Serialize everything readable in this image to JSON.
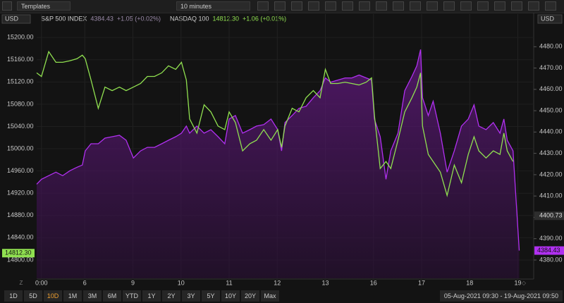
{
  "toolbar": {
    "templates": "Templates",
    "interval": "10 minutes"
  },
  "chart_data": {
    "type": "line",
    "left_currency": "USD",
    "right_currency": "USD",
    "x": [
      0,
      0.1,
      0.25,
      0.4,
      0.54,
      0.69,
      0.84,
      0.95,
      1.01,
      1.13,
      1.28,
      1.42,
      1.57,
      1.72,
      1.86,
      2.01,
      2.16,
      2.3,
      2.45,
      2.6,
      2.74,
      2.89,
      3.01,
      3.11,
      3.18,
      3.33,
      3.48,
      3.62,
      3.77,
      3.91,
      4.0,
      4.13,
      4.28,
      4.43,
      4.57,
      4.72,
      4.87,
      5.01,
      5.09,
      5.16,
      5.31,
      5.45,
      5.6,
      5.75,
      5.89,
      6.0,
      6.11,
      6.26,
      6.41,
      6.55,
      6.7,
      6.85,
      6.96,
      7.02,
      7.14,
      7.26,
      7.36,
      7.51,
      7.65,
      7.8,
      7.9,
      7.98,
      8.02,
      8.14,
      8.24,
      8.39,
      8.53,
      8.68,
      8.83,
      8.97,
      9.09,
      9.19,
      9.34,
      9.49,
      9.63,
      9.71,
      9.78,
      9.9,
      9.97,
      10.03
    ],
    "xlim": [
      0,
      10.33
    ],
    "xticks": [
      {
        "value": 0.1,
        "label": "0:00"
      },
      {
        "value": 1,
        "label": "6"
      },
      {
        "value": 2,
        "label": "9"
      },
      {
        "value": 3,
        "label": "10"
      },
      {
        "value": 4,
        "label": "11"
      },
      {
        "value": 5,
        "label": "12"
      },
      {
        "value": 6,
        "label": "13"
      },
      {
        "value": 7,
        "label": "16"
      },
      {
        "value": 8,
        "label": "17"
      },
      {
        "value": 9,
        "label": "18"
      },
      {
        "value": 10,
        "label": "19"
      }
    ],
    "ylim": [
      14767,
      15242
    ],
    "yticks": [
      {
        "value": 14800,
        "label": "14800.00"
      },
      {
        "value": 14840,
        "label": "14840.00"
      },
      {
        "value": 14880,
        "label": "14880.00"
      },
      {
        "value": 14920,
        "label": "14920.00"
      },
      {
        "value": 14960,
        "label": "14960.00"
      },
      {
        "value": 15000,
        "label": "15000.00"
      },
      {
        "value": 15040,
        "label": "15040.00"
      },
      {
        "value": 15080,
        "label": "15080.00"
      },
      {
        "value": 15120,
        "label": "15120.00"
      },
      {
        "value": 15160,
        "label": "15160.00"
      },
      {
        "value": 15200,
        "label": "15200.00"
      }
    ],
    "y2lim": [
      4371.4,
      4495.3
    ],
    "y2ticks": [
      {
        "value": 4380,
        "label": "4380.00"
      },
      {
        "value": 4390,
        "label": "4390.00"
      },
      {
        "value": 4400,
        "label": "4400.00"
      },
      {
        "value": 4410,
        "label": "4410.00"
      },
      {
        "value": 4420,
        "label": "4420.00"
      },
      {
        "value": 4430,
        "label": "4430.00"
      },
      {
        "value": 4440,
        "label": "4440.00"
      },
      {
        "value": 4450,
        "label": "4450.00"
      },
      {
        "value": 4460,
        "label": "4460.00"
      },
      {
        "value": 4470,
        "label": "4470.00"
      },
      {
        "value": 4480,
        "label": "4480.00"
      }
    ],
    "y2_markers": [
      {
        "value": 4400.73,
        "label": "4400.73"
      }
    ],
    "grid": true,
    "series": [
      {
        "name": "S&P 500 INDEX",
        "quote": "4384.43",
        "change": "+1.05 (+0.02%)",
        "color": "#b030f0",
        "quote_color": "#9a8aa8",
        "axis": "y2",
        "area": true,
        "last": 4384.43,
        "last_label": "4384.43",
        "values": [
          4415.55,
          4417.87,
          4419.53,
          4421.2,
          4419.53,
          4421.86,
          4423.52,
          4424.52,
          4431.16,
          4434.49,
          4434.49,
          4437.14,
          4437.81,
          4438.47,
          4436.15,
          4427.84,
          4431.16,
          4432.82,
          4432.82,
          4434.49,
          4436.15,
          4437.81,
          4439.47,
          4442.79,
          4439.47,
          4442.79,
          4439.47,
          4441.13,
          4437.81,
          4434.49,
          4446.11,
          4447.77,
          4439.47,
          4441.13,
          4442.79,
          4443.46,
          4446.11,
          4441.13,
          4431.16,
          4444.45,
          4447.77,
          4451.1,
          4452.09,
          4456.08,
          4459.4,
          4465.38,
          4463.39,
          4464.39,
          4465.38,
          4465.38,
          4466.71,
          4465.38,
          4464.39,
          4446.11,
          4437.81,
          4417.87,
          4431.16,
          4439.47,
          4459.4,
          4466.05,
          4471.03,
          4478.67,
          4456.08,
          4447.77,
          4454.42,
          4439.47,
          4421.2,
          4431.16,
          4442.79,
          4446.11,
          4452.76,
          4442.79,
          4441.13,
          4444.45,
          4439.47,
          4446.11,
          4436.15,
          4431.16,
          4406.25,
          4384.43
        ]
      },
      {
        "name": "NASDAQ 100",
        "quote": "14812.30",
        "change": "+1.06 (+0.01%)",
        "color": "#90e050",
        "quote_color": "#90e050",
        "axis": "y",
        "area": false,
        "last": 14812.3,
        "last_label": "14812.30",
        "values": [
          15136.3,
          15129.9,
          15174.5,
          15155.4,
          15155.4,
          15158.0,
          15161.8,
          15168.1,
          15161.8,
          15123.6,
          15072.6,
          15110.8,
          15104.4,
          15110.8,
          15104.4,
          15110.8,
          15117.2,
          15129.9,
          15129.9,
          15136.3,
          15149.0,
          15142.7,
          15155.4,
          15123.6,
          15053.5,
          15028.0,
          15079.0,
          15066.2,
          15040.7,
          15034.4,
          15066.2,
          15047.1,
          14996.2,
          15008.9,
          15015.3,
          15034.4,
          15015.3,
          15034.4,
          15002.5,
          15040.7,
          15072.6,
          15066.2,
          15091.7,
          15104.4,
          15091.7,
          15142.7,
          15117.2,
          15117.2,
          15119.7,
          15117.2,
          15114.6,
          15119.7,
          15127.4,
          15059.9,
          14964.3,
          14977.0,
          14964.3,
          15015.3,
          15066.2,
          15091.7,
          15110.8,
          15136.3,
          15040.7,
          14989.8,
          14977.0,
          14957.9,
          14915.9,
          14970.7,
          14938.8,
          14989.8,
          15021.6,
          14996.2,
          14983.4,
          14996.2,
          14989.8,
          15028.0,
          14996.2,
          14977.0,
          null,
          null
        ]
      }
    ],
    "range_label": "05-Aug-2021 09:30 - 19-Aug-2021 09:50"
  },
  "range_buttons": {
    "items": [
      "1D",
      "5D",
      "10D",
      "1M",
      "3M",
      "6M",
      "YTD",
      "1Y",
      "2Y",
      "3Y",
      "5Y",
      "10Y",
      "20Y",
      "Max"
    ],
    "active": 2
  }
}
